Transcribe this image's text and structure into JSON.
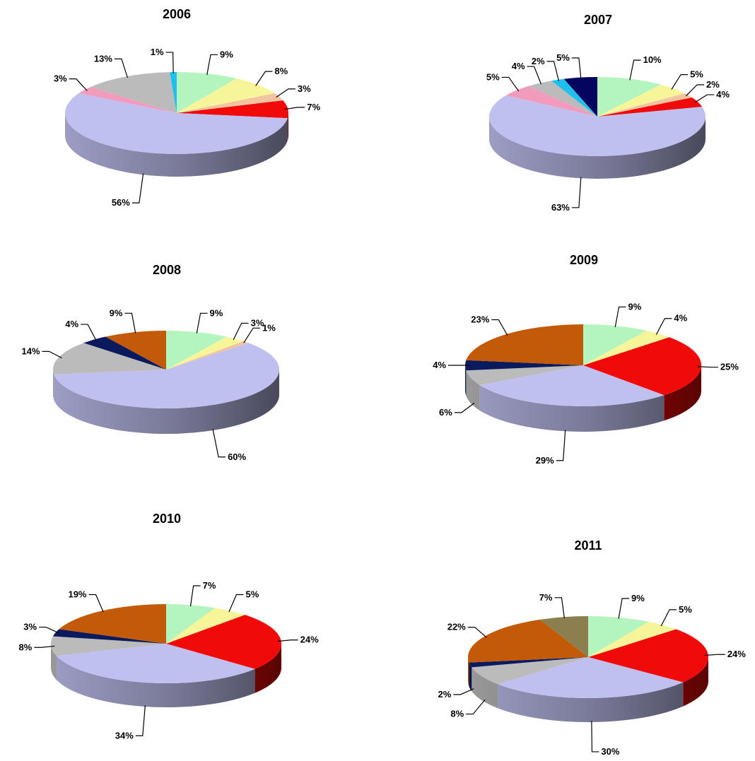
{
  "chart_data": [
    {
      "type": "pie",
      "title": "2006",
      "colors": [
        "#b4f4be",
        "#f6f59a",
        "#f2c4a0",
        "#f00a0a",
        "#c0c0f0",
        "#f29bbc",
        "#bbbbbb",
        "#1fc0ec"
      ],
      "values": [
        9,
        8,
        3,
        7,
        56,
        3,
        13,
        1
      ],
      "labels": [
        "9%",
        "8%",
        "3%",
        "7%",
        "56%",
        "3%",
        "13%",
        "1%"
      ]
    },
    {
      "type": "pie",
      "title": "2007",
      "colors": [
        "#b4f4be",
        "#f6f59a",
        "#f2c4a0",
        "#f00a0a",
        "#c0c0f0",
        "#f29bbc",
        "#bbbbbb",
        "#1fc0ec",
        "#03055f"
      ],
      "values": [
        10,
        5,
        2,
        4,
        63,
        5,
        4,
        2,
        5
      ],
      "labels": [
        "10%",
        "5%",
        "2%",
        "4%",
        "63%",
        "5%",
        "4%",
        "2%",
        "5%"
      ]
    },
    {
      "type": "pie",
      "title": "2008",
      "colors": [
        "#b4f4be",
        "#f6f59a",
        "#f2c4a0",
        "#c0c0f0",
        "#bbbbbb",
        "#0a1a5c",
        "#c35a08"
      ],
      "values": [
        9,
        3,
        1,
        60,
        14,
        4,
        9
      ],
      "labels": [
        "9%",
        "3%",
        "1%",
        "60%",
        "14%",
        "4%",
        "9%"
      ]
    },
    {
      "type": "pie",
      "title": "2009",
      "colors": [
        "#b4f4be",
        "#f6f59a",
        "#f00a0a",
        "#c0c0f0",
        "#bbbbbb",
        "#0a1a5c",
        "#c35a08"
      ],
      "values": [
        9,
        4,
        25,
        29,
        6,
        4,
        23
      ],
      "labels": [
        "9%",
        "4%",
        "25%",
        "29%",
        "6%",
        "4%",
        "23%"
      ]
    },
    {
      "type": "pie",
      "title": "2010",
      "colors": [
        "#b4f4be",
        "#f6f59a",
        "#f00a0a",
        "#c0c0f0",
        "#bbbbbb",
        "#0a1a5c",
        "#c35a08"
      ],
      "values": [
        7,
        5,
        24,
        34,
        8,
        3,
        19
      ],
      "labels": [
        "7%",
        "5%",
        "24%",
        "34%",
        "8%",
        "3%",
        "19%"
      ]
    },
    {
      "type": "pie",
      "title": "2011",
      "colors": [
        "#b4f4be",
        "#f6f59a",
        "#f00a0a",
        "#c0c0f0",
        "#bbbbbb",
        "#0a1a5c",
        "#c35a08",
        "#8c7f4f"
      ],
      "values": [
        9,
        5,
        24,
        30,
        8,
        2,
        22,
        7
      ],
      "labels": [
        "9%",
        "5%",
        "24%",
        "30%",
        "8%",
        "2%",
        "22%",
        "7%"
      ]
    }
  ]
}
